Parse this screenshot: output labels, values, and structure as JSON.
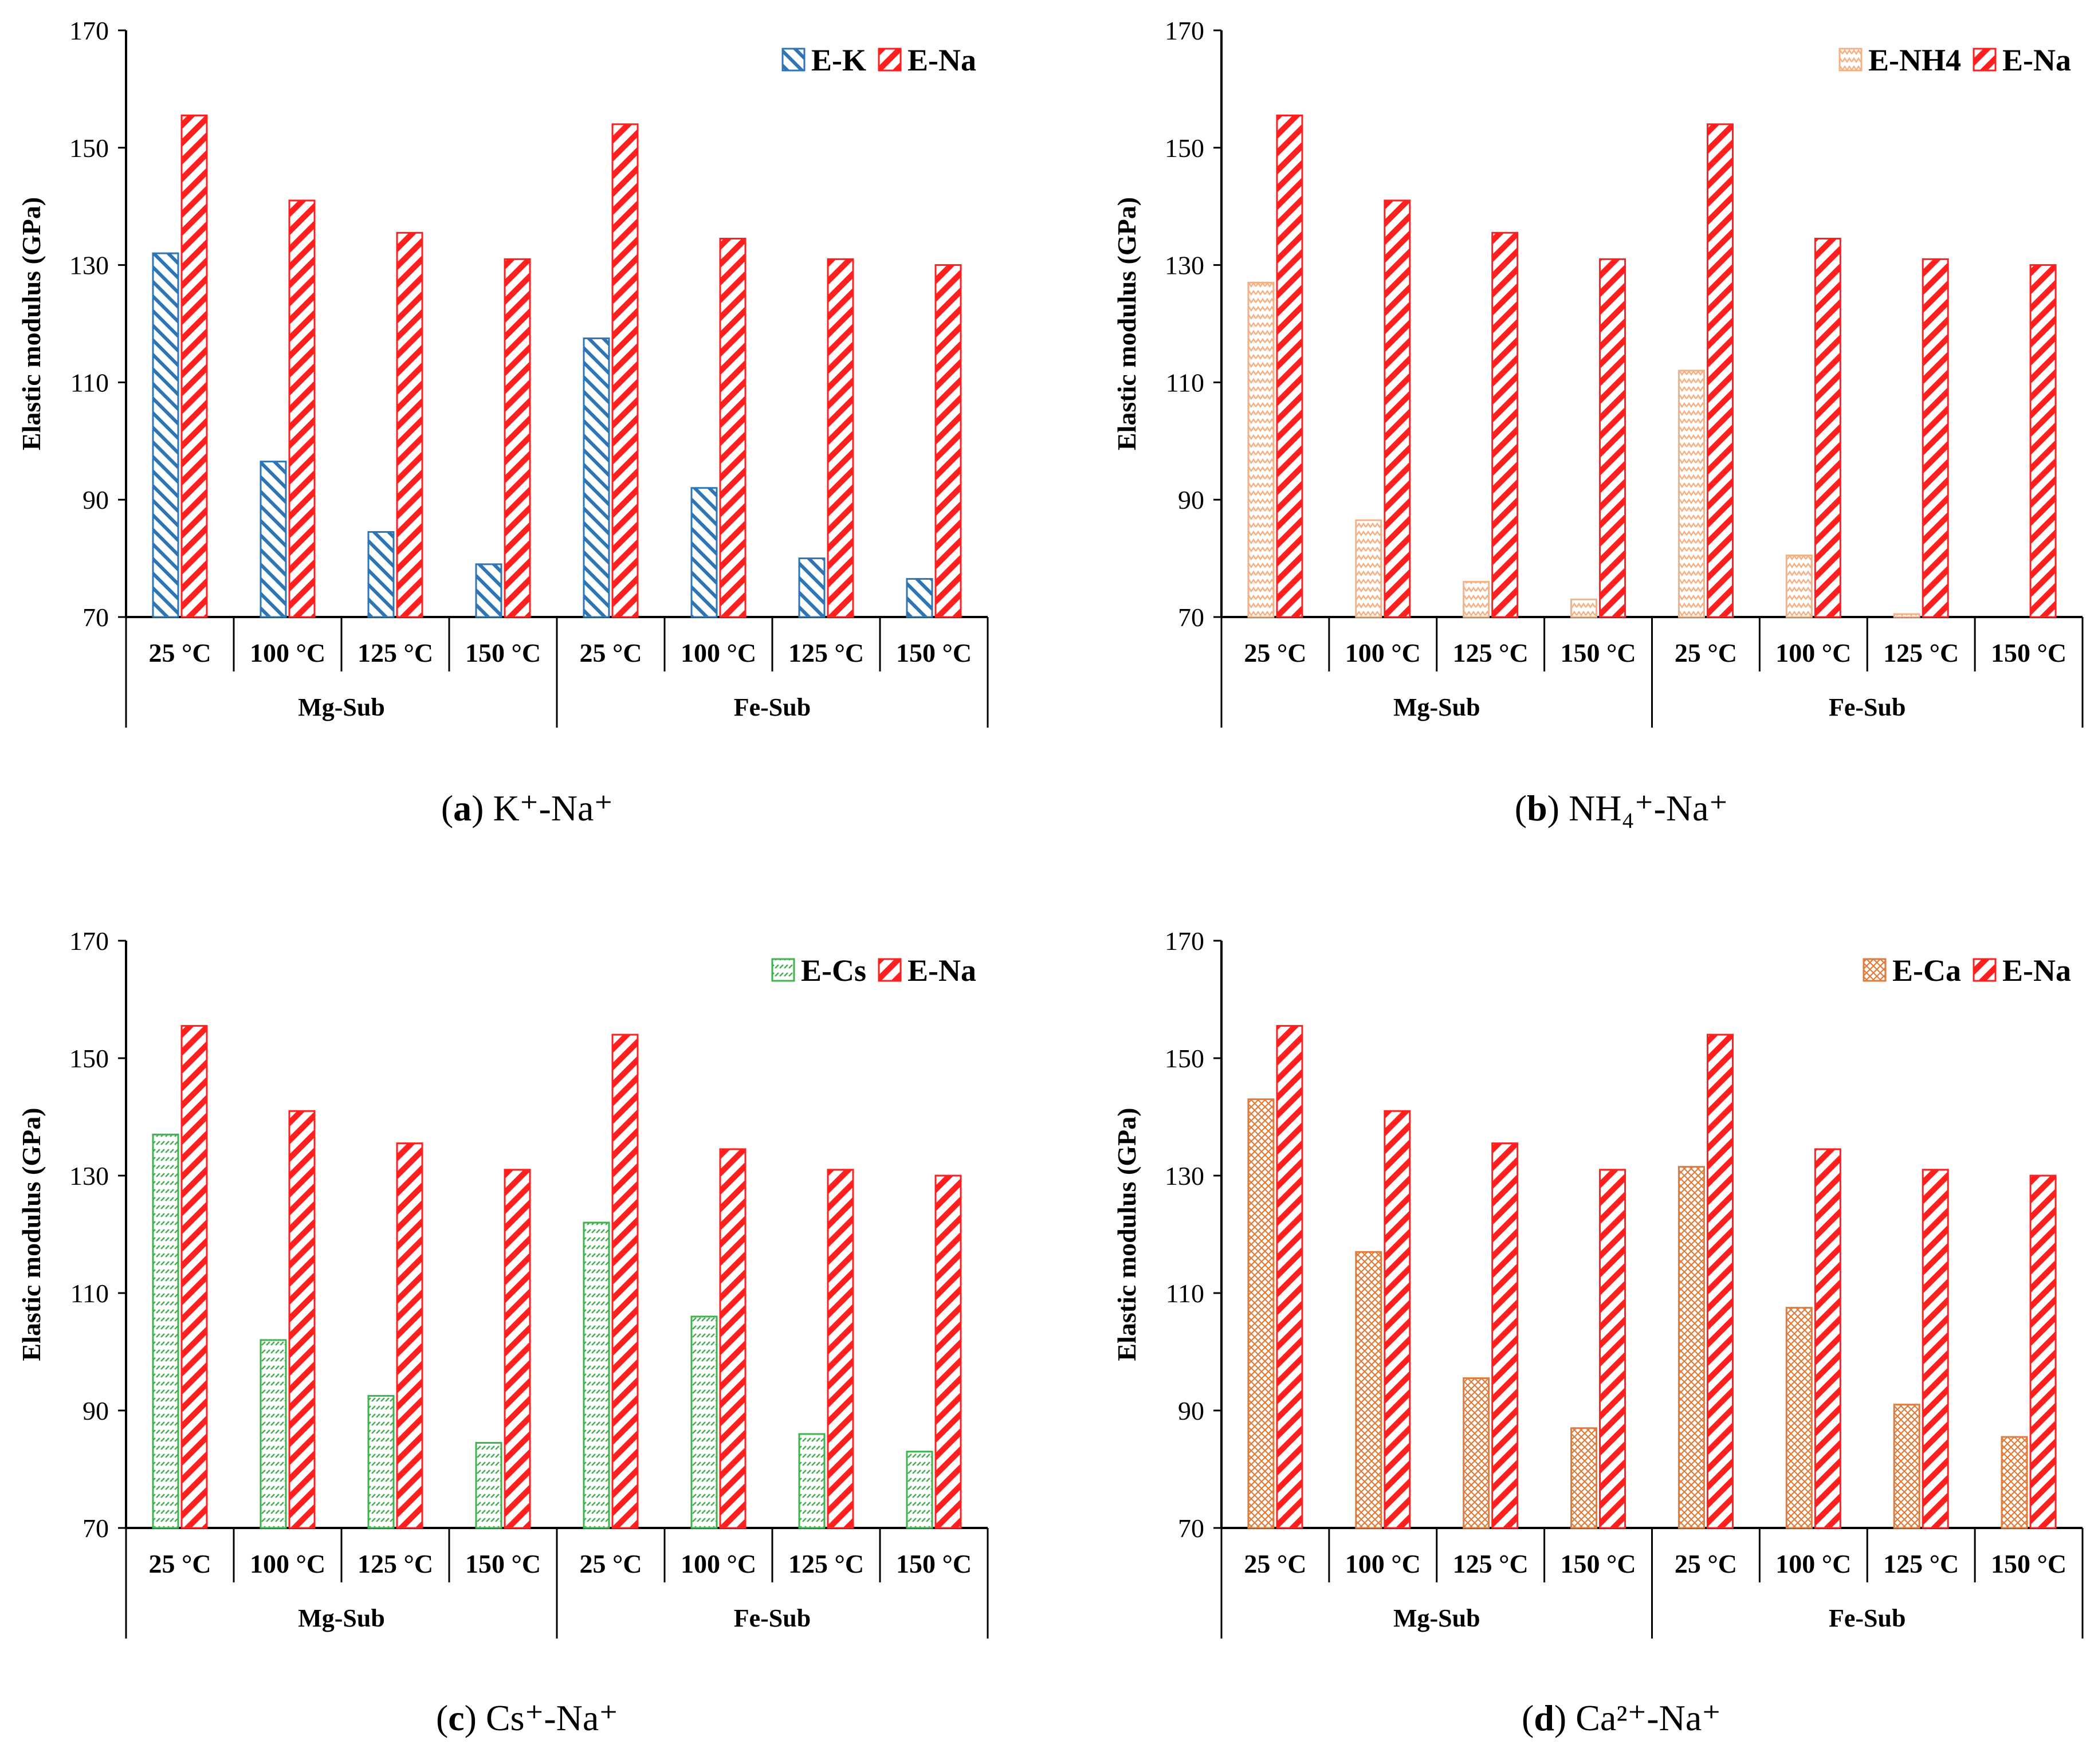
{
  "figure": {
    "categories": [
      "25 °C",
      "100 °C",
      "125 °C",
      "150 °C",
      "25 °C",
      "100 °C",
      "125 °C",
      "150 °C"
    ],
    "groups": [
      {
        "label": "Mg-Sub"
      },
      {
        "label": "Fe-Sub"
      }
    ],
    "ylabel": "Elastic modulus (GPa)",
    "yticks": [
      "70",
      "90",
      "110",
      "130",
      "150",
      "170"
    ],
    "colors": {
      "na": "#ff1f1f",
      "k": "#2e75b6",
      "nh4": "#f4b183",
      "cs": "#3cb44b",
      "ca": "#e07b39",
      "axis": "#000000"
    },
    "patterns": {
      "na": "diagonal-hatch",
      "k": "back-diagonal-hatch",
      "nh4": "zigzag",
      "cs": "dotted-dash",
      "ca": "cross-hatch"
    }
  },
  "chart_data": [
    {
      "type": "bar",
      "id": "a",
      "caption": {
        "letter": "a",
        "text": "K⁺-Na⁺"
      },
      "categories": [
        "25 °C",
        "100 °C",
        "125 °C",
        "150 °C",
        "25 °C",
        "100 °C",
        "125 °C",
        "150 °C"
      ],
      "group_labels": [
        "Mg-Sub",
        "Fe-Sub"
      ],
      "ylabel": "Elastic modulus (GPa)",
      "ylim": [
        70,
        170
      ],
      "legend_position": "top-right",
      "series": [
        {
          "name": "E-K",
          "color_key": "k",
          "pattern": "k",
          "values": [
            132,
            96.5,
            84.5,
            79,
            117.5,
            92,
            80,
            76.5
          ]
        },
        {
          "name": "E-Na",
          "color_key": "na",
          "pattern": "na",
          "values": [
            155.5,
            141,
            135.5,
            131,
            154,
            134.5,
            131,
            130
          ]
        }
      ]
    },
    {
      "type": "bar",
      "id": "b",
      "caption": {
        "letter": "b",
        "text": "NH₄⁺-Na⁺"
      },
      "categories": [
        "25 °C",
        "100 °C",
        "125 °C",
        "150 °C",
        "25 °C",
        "100 °C",
        "125 °C",
        "150 °C"
      ],
      "group_labels": [
        "Mg-Sub",
        "Fe-Sub"
      ],
      "ylabel": "Elastic modulus (GPa)",
      "ylim": [
        70,
        170
      ],
      "legend_position": "top-right",
      "series": [
        {
          "name": "E-NH4",
          "color_key": "nh4",
          "pattern": "nh4",
          "values": [
            127,
            86.5,
            76,
            73,
            112,
            80.5,
            70.5,
            70
          ]
        },
        {
          "name": "E-Na",
          "color_key": "na",
          "pattern": "na",
          "values": [
            155.5,
            141,
            135.5,
            131,
            154,
            134.5,
            131,
            130
          ]
        }
      ]
    },
    {
      "type": "bar",
      "id": "c",
      "caption": {
        "letter": "c",
        "text": "Cs⁺-Na⁺"
      },
      "categories": [
        "25 °C",
        "100 °C",
        "125 °C",
        "150 °C",
        "25 °C",
        "100 °C",
        "125 °C",
        "150 °C"
      ],
      "group_labels": [
        "Mg-Sub",
        "Fe-Sub"
      ],
      "ylabel": "Elastic modulus (GPa)",
      "ylim": [
        70,
        170
      ],
      "legend_position": "top-right",
      "series": [
        {
          "name": "E-Cs",
          "color_key": "cs",
          "pattern": "cs",
          "values": [
            137,
            102,
            92.5,
            84.5,
            122,
            106,
            86,
            83
          ]
        },
        {
          "name": "E-Na",
          "color_key": "na",
          "pattern": "na",
          "values": [
            155.5,
            141,
            135.5,
            131,
            154,
            134.5,
            131,
            130
          ]
        }
      ]
    },
    {
      "type": "bar",
      "id": "d",
      "caption": {
        "letter": "d",
        "text": "Ca²⁺-Na⁺"
      },
      "categories": [
        "25 °C",
        "100 °C",
        "125 °C",
        "150 °C",
        "25 °C",
        "100 °C",
        "125 °C",
        "150 °C"
      ],
      "group_labels": [
        "Mg-Sub",
        "Fe-Sub"
      ],
      "ylabel": "Elastic modulus (GPa)",
      "ylim": [
        70,
        170
      ],
      "legend_position": "top-right",
      "series": [
        {
          "name": "E-Ca",
          "color_key": "ca",
          "pattern": "ca",
          "values": [
            143,
            117,
            95.5,
            87,
            131.5,
            107.5,
            91,
            85.5
          ]
        },
        {
          "name": "E-Na",
          "color_key": "na",
          "pattern": "na",
          "values": [
            155.5,
            141,
            135.5,
            131,
            154,
            134.5,
            131,
            130
          ]
        }
      ]
    }
  ]
}
